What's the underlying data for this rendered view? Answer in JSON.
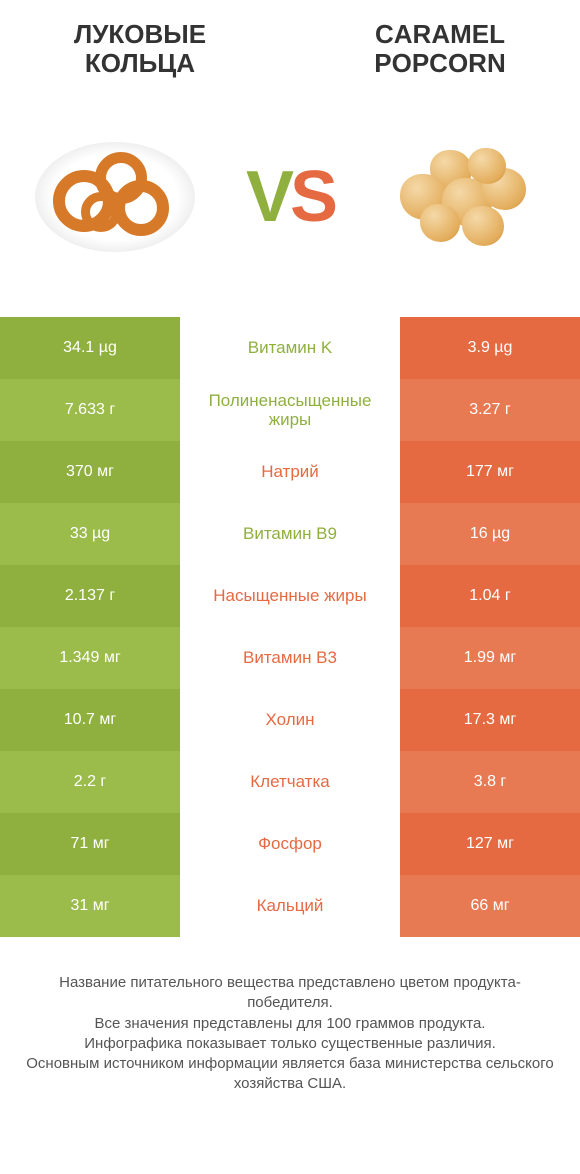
{
  "palette": {
    "green": "#8fb03e",
    "green_alt": "#9bbb4a",
    "orange": "#e56a42",
    "orange_alt": "#e87a53",
    "bg": "#ffffff",
    "text_dark": "#333333",
    "text_muted": "#555555"
  },
  "header": {
    "left_title": "ЛУКОВЫЕ КОЛЬЦА",
    "right_title": "CARAMEL POPCORN"
  },
  "vs": {
    "v": "V",
    "s": "S"
  },
  "comparison": {
    "type": "table",
    "left_color_a": "#8fb03e",
    "left_color_b": "#9bbb4a",
    "right_color_a": "#e56a42",
    "right_color_b": "#e87a53",
    "label_color_green": "#8fb03e",
    "label_color_orange": "#e56a42",
    "rows": [
      {
        "label": "Витамин K",
        "left": "34.1 µg",
        "right": "3.9 µg",
        "winner": "left"
      },
      {
        "label": "Полиненасыщенные жиры",
        "left": "7.633 г",
        "right": "3.27 г",
        "winner": "left"
      },
      {
        "label": "Натрий",
        "left": "370 мг",
        "right": "177 мг",
        "winner": "right"
      },
      {
        "label": "Витамин B9",
        "left": "33 µg",
        "right": "16 µg",
        "winner": "left"
      },
      {
        "label": "Насыщенные жиры",
        "left": "2.137 г",
        "right": "1.04 г",
        "winner": "right"
      },
      {
        "label": "Витамин B3",
        "left": "1.349 мг",
        "right": "1.99 мг",
        "winner": "right"
      },
      {
        "label": "Холин",
        "left": "10.7 мг",
        "right": "17.3 мг",
        "winner": "right"
      },
      {
        "label": "Клетчатка",
        "left": "2.2 г",
        "right": "3.8 г",
        "winner": "right"
      },
      {
        "label": "Фосфор",
        "left": "71 мг",
        "right": "127 мг",
        "winner": "right"
      },
      {
        "label": "Кальций",
        "left": "31 мг",
        "right": "66 мг",
        "winner": "right"
      }
    ]
  },
  "footer": {
    "line1": "Название питательного вещества представлено цветом продукта-победителя.",
    "line2": "Все значения представлены для 100 граммов продукта.",
    "line3": "Инфографика показывает только существенные различия.",
    "line4": "Основным источником информации является база министерства сельского хозяйства США."
  }
}
